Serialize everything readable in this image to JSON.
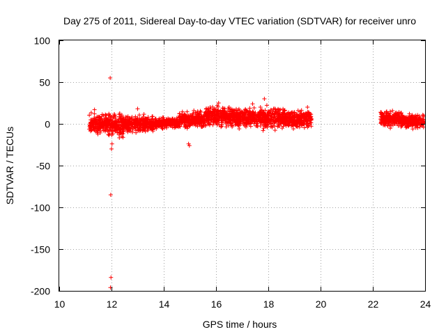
{
  "chart_data": {
    "type": "scatter",
    "title": "Day 275 of 2011, Sidereal Day-to-day VTEC variation (SDTVAR) for receiver unro",
    "xlabel": "GPS time / hours",
    "ylabel": "SDTVAR / TECUs",
    "xlim": [
      10,
      24
    ],
    "ylim": [
      -200,
      100
    ],
    "x_ticks": [
      10,
      12,
      14,
      16,
      18,
      20,
      22,
      24
    ],
    "y_ticks": [
      -200,
      -150,
      -100,
      -50,
      0,
      50,
      100
    ],
    "x_tick_labels": [
      "10",
      "12",
      "14",
      "16",
      "18",
      "20",
      "22",
      "24"
    ],
    "y_tick_labels": [
      "-200",
      "-150",
      "-100",
      "-50",
      "0",
      "50",
      "100"
    ],
    "grid": true,
    "marker": "+",
    "color": "#ff0000",
    "series": [
      {
        "name": "SDTVAR",
        "points": [
          [
            11.2,
            2
          ],
          [
            11.3,
            -5
          ],
          [
            11.35,
            17
          ],
          [
            11.4,
            5
          ],
          [
            11.5,
            -3
          ],
          [
            11.55,
            8
          ],
          [
            11.6,
            0
          ],
          [
            11.7,
            -8
          ],
          [
            11.8,
            10
          ],
          [
            11.85,
            -4
          ],
          [
            11.9,
            12
          ],
          [
            11.95,
            55
          ],
          [
            11.97,
            -85
          ],
          [
            11.98,
            -184
          ],
          [
            11.96,
            -196
          ],
          [
            12.0,
            -30
          ],
          [
            12.02,
            -24
          ],
          [
            12.05,
            -12
          ],
          [
            12.1,
            -8
          ],
          [
            12.15,
            6
          ],
          [
            12.2,
            -3
          ],
          [
            12.3,
            9
          ],
          [
            12.4,
            -15
          ],
          [
            12.5,
            3
          ],
          [
            12.6,
            -6
          ],
          [
            12.7,
            7
          ],
          [
            12.8,
            -10
          ],
          [
            12.9,
            4
          ],
          [
            13.0,
            18
          ],
          [
            13.05,
            -2
          ],
          [
            13.1,
            -7
          ],
          [
            13.2,
            5
          ],
          [
            13.3,
            -4
          ],
          [
            13.4,
            8
          ],
          [
            13.5,
            0
          ],
          [
            13.6,
            -3
          ],
          [
            13.7,
            6
          ],
          [
            13.8,
            -2
          ],
          [
            13.9,
            3
          ],
          [
            14.0,
            -1
          ],
          [
            14.1,
            5
          ],
          [
            14.2,
            0
          ],
          [
            14.3,
            4
          ],
          [
            14.4,
            2
          ],
          [
            14.5,
            7
          ],
          [
            14.6,
            3
          ],
          [
            14.7,
            6
          ],
          [
            14.8,
            10
          ],
          [
            14.9,
            4
          ],
          [
            14.95,
            -24
          ],
          [
            14.98,
            -26
          ],
          [
            15.0,
            8
          ],
          [
            15.1,
            12
          ],
          [
            15.2,
            5
          ],
          [
            15.3,
            15
          ],
          [
            15.4,
            3
          ],
          [
            15.5,
            9
          ],
          [
            15.6,
            14
          ],
          [
            15.7,
            6
          ],
          [
            15.8,
            18
          ],
          [
            15.9,
            2
          ],
          [
            16.0,
            10
          ],
          [
            16.05,
            22
          ],
          [
            16.1,
            25
          ],
          [
            16.2,
            8
          ],
          [
            16.3,
            16
          ],
          [
            16.4,
            5
          ],
          [
            16.5,
            20
          ],
          [
            16.6,
            12
          ],
          [
            16.7,
            7
          ],
          [
            16.8,
            14
          ],
          [
            16.9,
            3
          ],
          [
            17.0,
            10
          ],
          [
            17.1,
            -2
          ],
          [
            17.2,
            15
          ],
          [
            17.3,
            8
          ],
          [
            17.4,
            24
          ],
          [
            17.5,
            5
          ],
          [
            17.6,
            12
          ],
          [
            17.7,
            20
          ],
          [
            17.8,
            -8
          ],
          [
            17.85,
            30
          ],
          [
            17.9,
            6
          ],
          [
            18.0,
            15
          ],
          [
            18.1,
            -3
          ],
          [
            18.2,
            18
          ],
          [
            18.3,
            4
          ],
          [
            18.4,
            12
          ],
          [
            18.5,
            0
          ],
          [
            18.6,
            16
          ],
          [
            18.7,
            6
          ],
          [
            18.8,
            10
          ],
          [
            18.9,
            2
          ],
          [
            19.0,
            14
          ],
          [
            19.1,
            4
          ],
          [
            19.2,
            8
          ],
          [
            19.3,
            1
          ],
          [
            19.4,
            10
          ],
          [
            19.5,
            20
          ],
          [
            19.6,
            12
          ],
          [
            19.65,
            6
          ],
          [
            22.3,
            14
          ],
          [
            22.4,
            8
          ],
          [
            22.5,
            2
          ],
          [
            22.6,
            12
          ],
          [
            22.7,
            -2
          ],
          [
            22.8,
            10
          ],
          [
            22.9,
            5
          ],
          [
            23.0,
            14
          ],
          [
            23.1,
            4
          ],
          [
            23.2,
            8
          ],
          [
            23.3,
            -3
          ],
          [
            23.4,
            12
          ],
          [
            23.5,
            3
          ],
          [
            23.6,
            9
          ],
          [
            23.7,
            -1
          ],
          [
            23.8,
            6
          ],
          [
            23.9,
            2
          ],
          [
            23.95,
            5
          ]
        ],
        "dense_bands": [
          {
            "x_range": [
              11.15,
              11.9
            ],
            "center": 0,
            "spread": 7
          },
          {
            "x_range": [
              11.9,
              12.6
            ],
            "center": -1,
            "spread": 8
          },
          {
            "x_range": [
              12.6,
              13.6
            ],
            "center": 0,
            "spread": 6
          },
          {
            "x_range": [
              13.6,
              14.6
            ],
            "center": 1,
            "spread": 4
          },
          {
            "x_range": [
              14.6,
              15.6
            ],
            "center": 5,
            "spread": 6
          },
          {
            "x_range": [
              15.6,
              16.6
            ],
            "center": 9,
            "spread": 7
          },
          {
            "x_range": [
              16.6,
              17.4
            ],
            "center": 8,
            "spread": 7
          },
          {
            "x_range": [
              17.4,
              18.6
            ],
            "center": 7,
            "spread": 8
          },
          {
            "x_range": [
              18.6,
              19.65
            ],
            "center": 6,
            "spread": 7
          },
          {
            "x_range": [
              22.3,
              23.1
            ],
            "center": 6,
            "spread": 6
          },
          {
            "x_range": [
              23.1,
              23.95
            ],
            "center": 3,
            "spread": 5
          }
        ]
      }
    ]
  }
}
